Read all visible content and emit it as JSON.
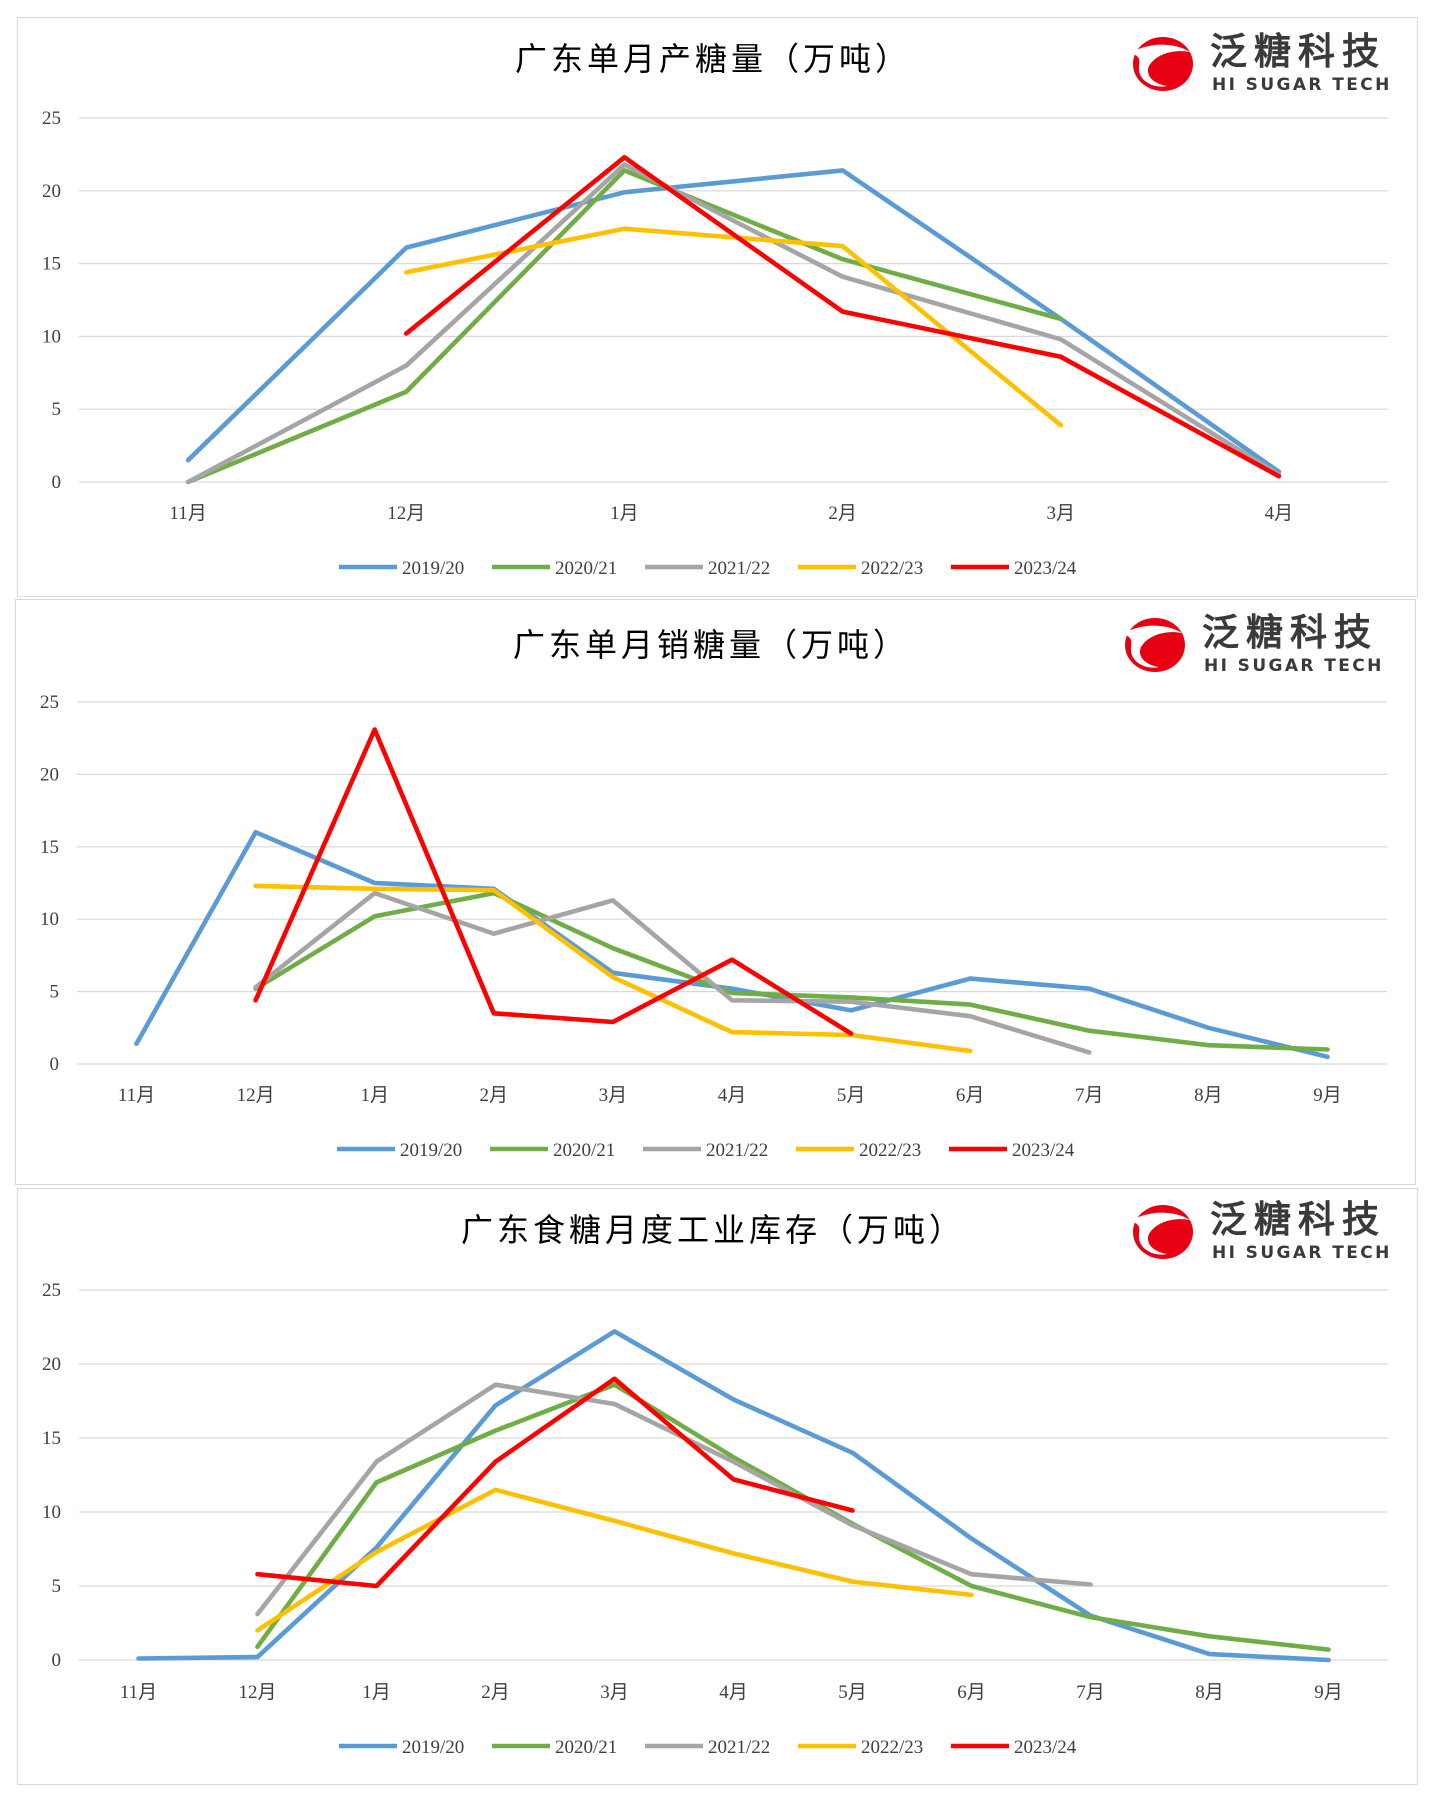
{
  "logo": {
    "name_cn": "泛糖科技",
    "name_en": "HI SUGAR TECH",
    "color": "#e60012"
  },
  "chart_data": [
    {
      "type": "line",
      "title": "广东单月产糖量（万吨）",
      "xlabel": "",
      "ylabel": "",
      "categories": [
        "11月",
        "12月",
        "1月",
        "2月",
        "3月",
        "4月"
      ],
      "ylim": [
        0,
        25
      ],
      "yticks": [
        0,
        5,
        10,
        15,
        20,
        25
      ],
      "grid": true,
      "legend_position": "bottom",
      "series": [
        {
          "name": "2019/20",
          "color": "#5b9bd5",
          "values": [
            1.5,
            16.1,
            19.9,
            21.4,
            11.2,
            0.7
          ]
        },
        {
          "name": "2020/21",
          "color": "#70ad47",
          "values": [
            0,
            6.2,
            21.4,
            15.3,
            11.2,
            null
          ]
        },
        {
          "name": "2021/22",
          "color": "#a5a5a5",
          "values": [
            0,
            8.0,
            21.8,
            14.1,
            9.8,
            0.5
          ]
        },
        {
          "name": "2022/23",
          "color": "#ffc000",
          "values": [
            null,
            14.4,
            17.4,
            16.2,
            3.9,
            null
          ]
        },
        {
          "name": "2023/24",
          "color": "#ff0000",
          "values": [
            null,
            10.2,
            22.3,
            11.7,
            8.6,
            0.4
          ]
        }
      ]
    },
    {
      "type": "line",
      "title": "广东单月销糖量（万吨）",
      "xlabel": "",
      "ylabel": "",
      "categories": [
        "11月",
        "12月",
        "1月",
        "2月",
        "3月",
        "4月",
        "5月",
        "6月",
        "7月",
        "8月",
        "9月"
      ],
      "ylim": [
        0,
        25
      ],
      "yticks": [
        0,
        5,
        10,
        15,
        20,
        25
      ],
      "grid": true,
      "legend_position": "bottom",
      "series": [
        {
          "name": "2019/20",
          "color": "#5b9bd5",
          "values": [
            1.4,
            16.0,
            12.5,
            12.1,
            6.3,
            5.2,
            3.7,
            5.9,
            5.2,
            2.5,
            0.5
          ]
        },
        {
          "name": "2020/21",
          "color": "#70ad47",
          "values": [
            null,
            5.2,
            10.2,
            11.8,
            8.0,
            4.9,
            4.6,
            4.1,
            2.3,
            1.3,
            1.0
          ]
        },
        {
          "name": "2021/22",
          "color": "#a5a5a5",
          "values": [
            null,
            5.3,
            11.8,
            9.0,
            11.3,
            4.4,
            4.3,
            3.3,
            0.8,
            null,
            null
          ]
        },
        {
          "name": "2022/23",
          "color": "#ffc000",
          "values": [
            null,
            12.3,
            12.1,
            12.0,
            6.0,
            2.2,
            2.0,
            0.9,
            null,
            null,
            null
          ]
        },
        {
          "name": "2023/24",
          "color": "#ff0000",
          "values": [
            null,
            4.4,
            23.1,
            3.5,
            2.9,
            7.2,
            2.1,
            null,
            null,
            null,
            null
          ]
        }
      ]
    },
    {
      "type": "line",
      "title": "广东食糖月度工业库存（万吨）",
      "xlabel": "",
      "ylabel": "",
      "categories": [
        "11月",
        "12月",
        "1月",
        "2月",
        "3月",
        "4月",
        "5月",
        "6月",
        "7月",
        "8月",
        "9月"
      ],
      "ylim": [
        0,
        25
      ],
      "yticks": [
        0,
        5,
        10,
        15,
        20,
        25
      ],
      "grid": true,
      "legend_position": "bottom",
      "series": [
        {
          "name": "2019/20",
          "color": "#5b9bd5",
          "values": [
            0.1,
            0.2,
            7.6,
            17.2,
            22.2,
            17.6,
            14.0,
            8.2,
            3.0,
            0.4,
            0.0
          ]
        },
        {
          "name": "2020/21",
          "color": "#70ad47",
          "values": [
            null,
            0.9,
            12.0,
            15.5,
            18.6,
            13.7,
            9.2,
            5.0,
            2.9,
            1.6,
            0.7
          ]
        },
        {
          "name": "2021/22",
          "color": "#a5a5a5",
          "values": [
            null,
            3.1,
            13.4,
            18.6,
            17.3,
            13.4,
            9.1,
            5.8,
            5.1,
            null,
            null
          ]
        },
        {
          "name": "2022/23",
          "color": "#ffc000",
          "values": [
            null,
            2.0,
            7.3,
            11.5,
            9.4,
            7.2,
            5.3,
            4.4,
            null,
            null,
            null
          ]
        },
        {
          "name": "2023/24",
          "color": "#ff0000",
          "values": [
            null,
            5.8,
            5.0,
            13.4,
            19.0,
            12.2,
            10.1,
            null,
            null,
            null,
            null
          ]
        }
      ]
    }
  ]
}
